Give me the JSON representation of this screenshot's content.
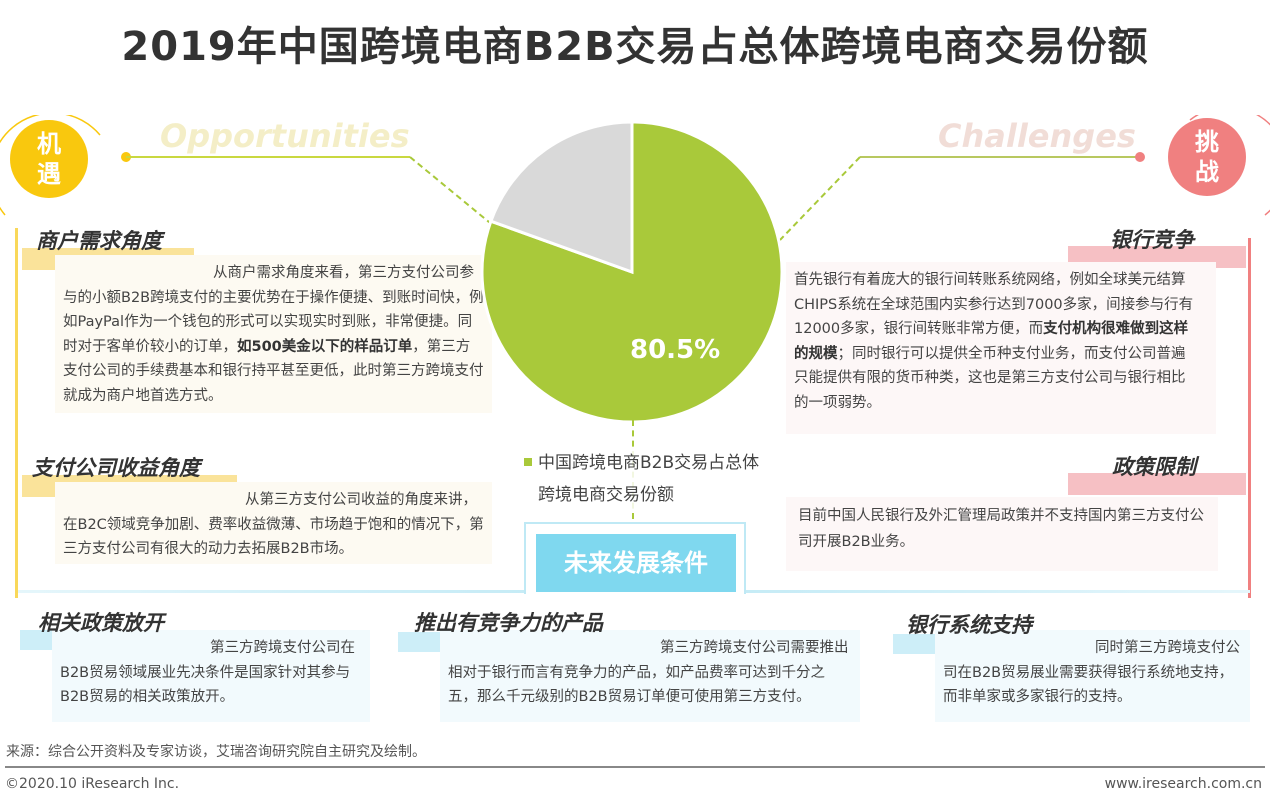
{
  "title": "2019年中国跨境电商B2B交易占总体跨境电商交易份额",
  "colors": {
    "opportunity": "#f9c80e",
    "challenge": "#f08080",
    "pie_main": "#a9c93a",
    "pie_rest": "#d9d9d9",
    "future": "#7fd8ef"
  },
  "opportunities": {
    "badge": "机遇",
    "english": "Opportunities",
    "items": [
      {
        "heading": "商户需求角度",
        "parts": [
          {
            "text": "从商户需求角度来看，第三方支付公司参与的小额B2B跨境支付的主要优势在于操作便捷、到账时间快，例如PayPal作为一个钱包的形式可以实现实时到账，非常便捷。同时对于客单价较小的订单，"
          },
          {
            "text": "如500美金以下的样品订单",
            "bold": true
          },
          {
            "text": "，第三方支付公司的手续费基本和银行持平甚至更低，此时第三方跨境支付就成为商户地首选方式。"
          }
        ]
      },
      {
        "heading": "支付公司收益角度",
        "parts": [
          {
            "text": "从第三方支付公司收益的角度来讲，在B2C领域竞争加剧、费率收益微薄、市场趋于饱和的情况下，第三方支付公司有很大的动力去拓展B2B市场。"
          }
        ]
      }
    ]
  },
  "challenges": {
    "badge": "挑战",
    "english": "Challenges",
    "items": [
      {
        "heading": "银行竞争",
        "parts": [
          {
            "text": "首先银行有着庞大的银行间转账系统网络，例如全球美元结算CHIPS系统在全球范围内实参行达到7000多家，间接参与行有12000多家，银行间转账非常方便，而"
          },
          {
            "text": "支付机构很难做到这样的规模",
            "bold": true
          },
          {
            "text": "；同时银行可以提供全币种支付业务，而支付公司普遍只能提供有限的货币种类，这也是第三方支付公司与银行相比的一项弱势。"
          }
        ]
      },
      {
        "heading": "政策限制",
        "parts": [
          {
            "text": "目前中国人民银行及外汇管理局政策并不支持国内第三方支付公司开展B2B业务。"
          }
        ]
      }
    ]
  },
  "chart_data": {
    "type": "pie",
    "slices": [
      {
        "label": "中国跨境电商B2B交易占总体跨境电商交易份额",
        "value": 80.5,
        "color": "#a9c93a"
      },
      {
        "label": "",
        "value": 19.5,
        "color": "#d9d9d9"
      }
    ],
    "data_label": "80.5%",
    "legend": "中国跨境电商B2B交易占总体跨境电商交易份额",
    "legend_position": "bottom"
  },
  "future": {
    "title": "未来发展条件",
    "items": [
      {
        "heading": "相关政策放开",
        "text": "第三方跨境支付公司在B2B贸易领域展业先决条件是国家针对其参与B2B贸易的相关政策放开。"
      },
      {
        "heading": "推出有竞争力的产品",
        "text": "第三方跨境支付公司需要推出相对于银行而言有竞争力的产品，如产品费率可达到千分之五，那么千元级别的B2B贸易订单便可使用第三方支付。"
      },
      {
        "heading": "银行系统支持",
        "text": "同时第三方跨境支付公司在B2B贸易展业需要获得银行系统地支持，而非单家或多家银行的支持。"
      }
    ]
  },
  "footer": {
    "source": "来源：综合公开资料及专家访谈，艾瑞咨询研究院自主研究及绘制。",
    "copyright": "©2020.10 iResearch Inc.",
    "website": "www.iresearch.com.cn"
  }
}
